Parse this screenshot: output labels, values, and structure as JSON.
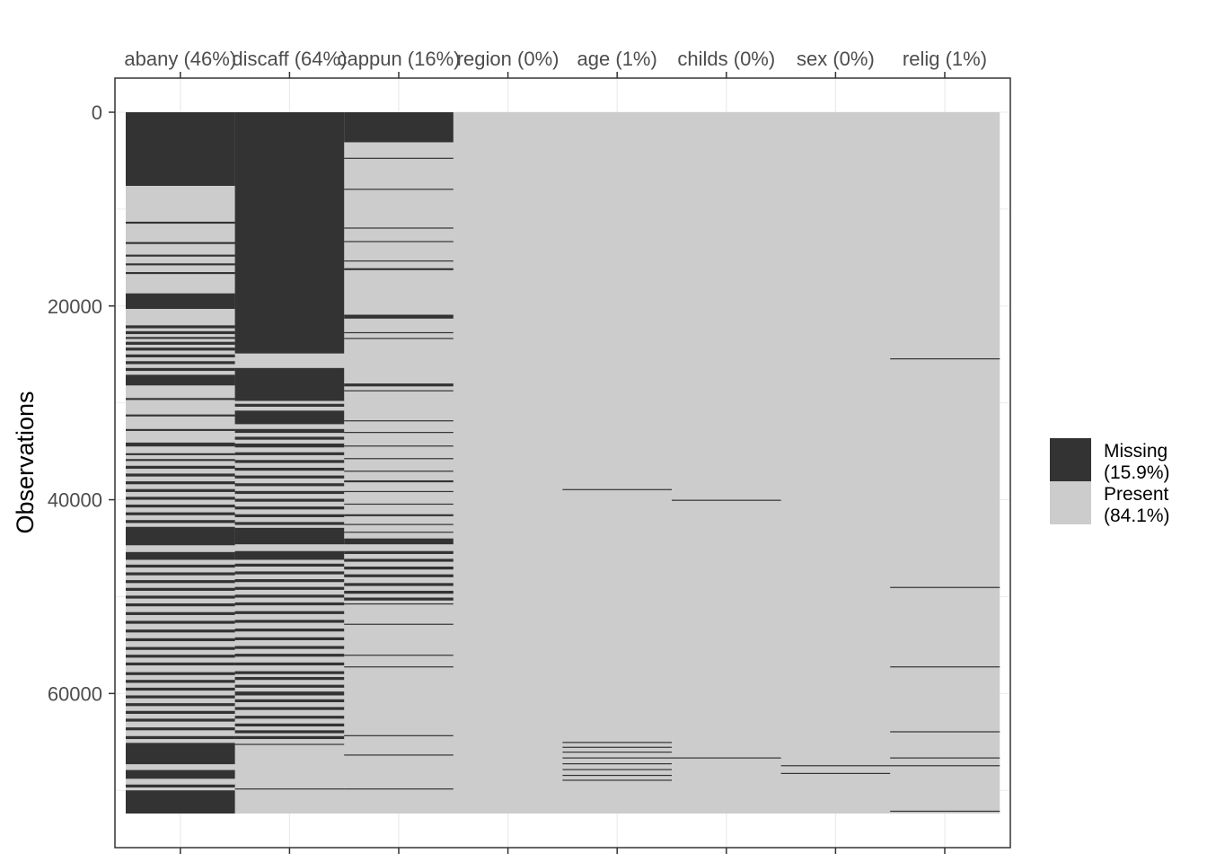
{
  "chart_data": {
    "type": "heatmap",
    "title": "",
    "xlabel": "",
    "ylabel": "Observations",
    "n_observations": 72390,
    "ylim": [
      0,
      72390
    ],
    "y_ticks": [
      0,
      20000,
      40000,
      60000
    ],
    "y_tick_labels": [
      "0",
      "20000",
      "40000",
      "60000"
    ],
    "columns": [
      {
        "label": "abany (46%)",
        "missing": [
          [
            0,
            7600
          ],
          [
            11300,
            11500
          ],
          [
            13400,
            13600
          ],
          [
            14700,
            14900
          ],
          [
            15600,
            15800
          ],
          [
            16500,
            16700
          ],
          [
            18700,
            20300
          ],
          [
            22000,
            22300
          ],
          [
            22600,
            22900
          ],
          [
            23200,
            23400
          ],
          [
            23700,
            24000
          ],
          [
            24300,
            24600
          ],
          [
            25000,
            25300
          ],
          [
            25700,
            26000
          ],
          [
            26400,
            26700
          ],
          [
            27100,
            28200
          ],
          [
            29500,
            29700
          ],
          [
            31200,
            31400
          ],
          [
            32700,
            32900
          ],
          [
            34100,
            34500
          ],
          [
            35200,
            35400
          ],
          [
            35800,
            36000
          ],
          [
            36500,
            36800
          ],
          [
            37300,
            37600
          ],
          [
            38100,
            38400
          ],
          [
            38900,
            39200
          ],
          [
            39700,
            40000
          ],
          [
            40500,
            40800
          ],
          [
            41300,
            41600
          ],
          [
            42100,
            42400
          ],
          [
            42800,
            44700
          ],
          [
            45400,
            46200
          ],
          [
            46700,
            47000
          ],
          [
            47500,
            47800
          ],
          [
            48300,
            48600
          ],
          [
            49100,
            49400
          ],
          [
            49900,
            50200
          ],
          [
            50700,
            51000
          ],
          [
            51600,
            51900
          ],
          [
            52500,
            52800
          ],
          [
            53400,
            53700
          ],
          [
            54300,
            54600
          ],
          [
            55200,
            55500
          ],
          [
            56000,
            56300
          ],
          [
            56800,
            57100
          ],
          [
            57800,
            58100
          ],
          [
            58600,
            58900
          ],
          [
            59400,
            59700
          ],
          [
            60200,
            60500
          ],
          [
            61000,
            61300
          ],
          [
            61800,
            62100
          ],
          [
            62600,
            62900
          ],
          [
            63500,
            63800
          ],
          [
            64400,
            64700
          ],
          [
            65100,
            67300
          ],
          [
            67900,
            68800
          ],
          [
            69400,
            69700
          ],
          [
            70000,
            72390
          ]
        ]
      },
      {
        "label": "discaff (64%)",
        "missing": [
          [
            0,
            24900
          ],
          [
            26400,
            29800
          ],
          [
            30100,
            30400
          ],
          [
            30800,
            32200
          ],
          [
            32700,
            33100
          ],
          [
            33500,
            33800
          ],
          [
            34200,
            34600
          ],
          [
            35100,
            35400
          ],
          [
            35900,
            36200
          ],
          [
            36700,
            37000
          ],
          [
            37500,
            37800
          ],
          [
            38300,
            38600
          ],
          [
            39100,
            39400
          ],
          [
            39900,
            40200
          ],
          [
            40700,
            41000
          ],
          [
            41500,
            41800
          ],
          [
            42300,
            42600
          ],
          [
            42900,
            44600
          ],
          [
            45300,
            46200
          ],
          [
            46600,
            46900
          ],
          [
            47400,
            47700
          ],
          [
            48200,
            48500
          ],
          [
            49000,
            49300
          ],
          [
            49800,
            50100
          ],
          [
            50600,
            50900
          ],
          [
            51500,
            51800
          ],
          [
            52400,
            52700
          ],
          [
            53300,
            53600
          ],
          [
            54200,
            54500
          ],
          [
            55100,
            55400
          ],
          [
            55900,
            56200
          ],
          [
            56800,
            57100
          ],
          [
            57700,
            58000
          ],
          [
            58300,
            58600
          ],
          [
            59100,
            59400
          ],
          [
            59800,
            60200
          ],
          [
            60600,
            60900
          ],
          [
            61400,
            61700
          ],
          [
            62300,
            62600
          ],
          [
            63100,
            63400
          ],
          [
            63800,
            64100
          ],
          [
            64400,
            64700
          ],
          [
            65200,
            65300
          ],
          [
            69800,
            69900
          ]
        ]
      },
      {
        "label": "cappun (16%)",
        "missing": [
          [
            0,
            3100
          ],
          [
            4700,
            4800
          ],
          [
            7900,
            8000
          ],
          [
            11900,
            12000
          ],
          [
            13300,
            13400
          ],
          [
            15300,
            15400
          ],
          [
            16100,
            16300
          ],
          [
            20900,
            21300
          ],
          [
            22700,
            22800
          ],
          [
            23300,
            23400
          ],
          [
            28000,
            28300
          ],
          [
            28700,
            28800
          ],
          [
            31800,
            31900
          ],
          [
            33000,
            33100
          ],
          [
            34400,
            34500
          ],
          [
            35700,
            35800
          ],
          [
            37000,
            37100
          ],
          [
            38000,
            38200
          ],
          [
            39100,
            39200
          ],
          [
            40400,
            40500
          ],
          [
            41500,
            41700
          ],
          [
            42500,
            42600
          ],
          [
            43300,
            43400
          ],
          [
            44000,
            44600
          ],
          [
            45300,
            45600
          ],
          [
            46100,
            46400
          ],
          [
            46900,
            47200
          ],
          [
            47700,
            48000
          ],
          [
            48600,
            48900
          ],
          [
            49400,
            49700
          ],
          [
            50100,
            50400
          ],
          [
            50700,
            50800
          ],
          [
            52800,
            52900
          ],
          [
            56000,
            56100
          ],
          [
            57200,
            57300
          ],
          [
            64300,
            64400
          ],
          [
            66300,
            66400
          ],
          [
            69800,
            69900
          ]
        ]
      },
      {
        "label": "region (0%)",
        "missing": []
      },
      {
        "label": "age (1%)",
        "missing": [
          [
            38900,
            39000
          ],
          [
            65000,
            65100
          ],
          [
            65500,
            65600
          ],
          [
            66000,
            66100
          ],
          [
            66600,
            66700
          ],
          [
            67200,
            67300
          ],
          [
            67800,
            67900
          ],
          [
            68400,
            68500
          ],
          [
            68900,
            69000
          ]
        ]
      },
      {
        "label": "childs (0%)",
        "missing": [
          [
            40000,
            40100
          ],
          [
            66600,
            66700
          ]
        ]
      },
      {
        "label": "sex (0%)",
        "missing": [
          [
            67400,
            67500
          ],
          [
            68200,
            68300
          ]
        ]
      },
      {
        "label": "relig (1%)",
        "missing": [
          [
            25400,
            25500
          ],
          [
            49000,
            49100
          ],
          [
            57200,
            57300
          ],
          [
            63900,
            64000
          ],
          [
            66600,
            66700
          ],
          [
            67400,
            67500
          ],
          [
            72100,
            72200
          ]
        ]
      }
    ],
    "legend": {
      "position": "right",
      "entries": [
        {
          "line1": "Missing",
          "line2": "(15.9%)",
          "color": "#333333"
        },
        {
          "line1": "Present",
          "line2": "(84.1%)",
          "color": "#cccccc"
        }
      ]
    },
    "colors": {
      "missing": "#333333",
      "present": "#cccccc",
      "grid": "#ebebeb",
      "panel_border": "#333333"
    },
    "grid": true
  }
}
